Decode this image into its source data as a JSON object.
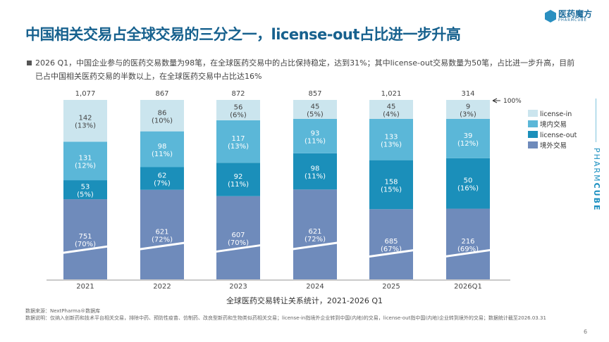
{
  "header": {
    "title": "中国相关交易占全球交易的三分之一，license-out占比进一步升高",
    "logo_cn": "医药魔方",
    "logo_en": "PHARMCUBE",
    "side_brand_a": "PHARM",
    "side_brand_b": "CUBE"
  },
  "summary": {
    "line1": "2026 Q1，中国企业参与的医药交易数量为98笔，在全球医药交易中的占比保持稳定，达到31%；其中license-out交易数量为50笔，占比进一步升高，目前",
    "line2": "已占中国相关医药交易的半数以上，在全球医药交易中占比达16%"
  },
  "chart_data": {
    "type": "bar",
    "stacked": true,
    "normalized": true,
    "title": "全球医药交易转让关系统计，2021-2026 Q1",
    "categories": [
      "2021",
      "2022",
      "2023",
      "2024",
      "2025",
      "2026Q1"
    ],
    "totals": [
      "1,077",
      "867",
      "872",
      "857",
      "1,021",
      "314"
    ],
    "series": [
      {
        "name": "境外交易",
        "color": "#6f8bbb",
        "values": [
          751,
          621,
          607,
          621,
          685,
          216
        ],
        "pct": [
          "70%",
          "72%",
          "70%",
          "72%",
          "67%",
          "69%"
        ]
      },
      {
        "name": "license-out",
        "color": "#1b8fba",
        "values": [
          53,
          62,
          92,
          98,
          158,
          50
        ],
        "pct": [
          "5%",
          "7%",
          "11%",
          "11%",
          "15%",
          "16%"
        ]
      },
      {
        "name": "境内交易",
        "color": "#5bb7d8",
        "values": [
          131,
          98,
          117,
          93,
          133,
          39
        ],
        "pct": [
          "12%",
          "11%",
          "13%",
          "11%",
          "13%",
          "12%"
        ]
      },
      {
        "name": "license-in",
        "color": "#cbe5ee",
        "values": [
          142,
          86,
          56,
          45,
          45,
          9
        ],
        "pct": [
          "13%",
          "10%",
          "6%",
          "5%",
          "4%",
          "3%"
        ]
      }
    ],
    "legend_order": [
      "license-in",
      "境内交易",
      "license-out",
      "境外交易"
    ],
    "legend_position": "top-right",
    "annotation": "100%",
    "ylim": [
      0,
      100
    ],
    "axis_break": true
  },
  "footer": {
    "source": "数据来源：NextPharma®数据库",
    "note": "数据说明：仅纳入创新药和技术平台相关交易，排除中药、预防性疫苗、仿制药、改良型新药和生物类似药相关交易；license-in指境外企业转到中国(内地)的交易，license-out指中国(内地)企业转到境外的交易；数据统计截至2026.03.31",
    "page": "6"
  }
}
